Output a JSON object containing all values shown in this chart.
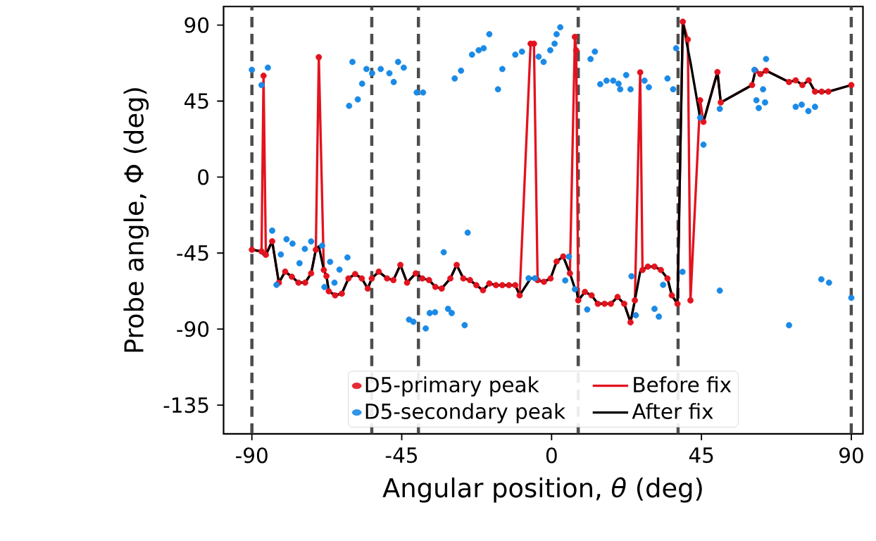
{
  "chart_data": {
    "type": "scatter",
    "xlabel": "Angular position, *θ* (deg)",
    "ylabel": "Probe angle, Φ (deg)",
    "xlim": [
      -98.5,
      93.5
    ],
    "ylim": [
      -152,
      101
    ],
    "xticks": [
      -90,
      -45,
      0,
      45,
      90
    ],
    "yticks": [
      -135,
      -90,
      -45,
      0,
      45,
      90
    ],
    "legend": "bottom",
    "ref_lines": [
      {
        "axis": "x",
        "value": -90,
        "color": "#4d4d4d",
        "line_style": "dashed"
      },
      {
        "axis": "x",
        "value": -54,
        "color": "#4d4d4d",
        "line_style": "dashed"
      },
      {
        "axis": "x",
        "value": -40,
        "color": "#4d4d4d",
        "line_style": "dashed"
      },
      {
        "axis": "x",
        "value": 8,
        "color": "#4d4d4d",
        "line_style": "dashed"
      },
      {
        "axis": "x",
        "value": 38,
        "color": "#4d4d4d",
        "line_style": "dashed"
      },
      {
        "axis": "x",
        "value": 90,
        "color": "#4d4d4d",
        "line_style": "dashed"
      }
    ],
    "series": [
      {
        "name": "D5-primary peak",
        "marker": "circle",
        "color": "#e3131e",
        "x": [
          -90,
          -87.1,
          -86.5,
          -85.8,
          -83.9,
          -81.9,
          -80,
          -78,
          -76,
          -74,
          -72.2,
          -70.8,
          -69.9,
          -68.4,
          -67.6,
          -66.9,
          -65,
          -63,
          -61,
          -59,
          -57,
          -55.2,
          -54,
          -51.9,
          -49.4,
          -47.5,
          -45.4,
          -43.4,
          -40.8,
          -38.8,
          -36.8,
          -34.9,
          -33,
          -30.4,
          -28.5,
          -26.5,
          -24.5,
          -22.6,
          -20.6,
          -18.7,
          -16.7,
          -14.8,
          -12.8,
          -10.9,
          -9.6,
          -6.3,
          -5.3,
          -4.2,
          -2.3,
          -0.3,
          1.5,
          3.5,
          5.5,
          7.0,
          7.4,
          8.0,
          10,
          12,
          13.9,
          15.9,
          17.8,
          19.8,
          21.8,
          23.7,
          25,
          26.6,
          27.3,
          28.9,
          30.9,
          32.8,
          34.8,
          36.1,
          37.8,
          39.4,
          40.9,
          41.7,
          44.6,
          45.6,
          49.8,
          50.8,
          60.2,
          61.2,
          62.7,
          64.4,
          71.3,
          73.3,
          75.3,
          77.2,
          79.1,
          81.1,
          83.1,
          90
        ],
        "values": [
          -43,
          -44,
          60,
          -46,
          -38,
          -62.5,
          -56,
          -59,
          -62.5,
          -62.5,
          -57,
          -43,
          71,
          -55,
          -58.6,
          -67.6,
          -70,
          -69,
          -60,
          -57.4,
          -60,
          -66,
          -60,
          -56,
          -60,
          -61,
          -52,
          -62.5,
          -57,
          -60,
          -61,
          -65,
          -66,
          -60,
          -52,
          -60,
          -61,
          -64,
          -67,
          -63,
          -64,
          -64,
          -64,
          -64,
          -70,
          79,
          79,
          -61,
          -62,
          -60,
          -50,
          -47,
          -57,
          83,
          75,
          -73,
          -68,
          -70,
          -75,
          -75,
          -75,
          -71,
          -75,
          -86,
          -73,
          62,
          -55,
          -53,
          -53,
          -55,
          -60,
          -70,
          -75,
          92,
          81.5,
          -73,
          45.5,
          32.7,
          62.2,
          44.2,
          54.5,
          63,
          61,
          63,
          56.3,
          57.3,
          54.5,
          57.3,
          50.6,
          50.6,
          50.6,
          54.5
        ]
      },
      {
        "name": "Before fix",
        "type": "line",
        "color": "#e3131e",
        "x": [
          -90,
          -87.1,
          -86.5,
          -85.8,
          -83.9,
          -81.9,
          -80,
          -78,
          -76,
          -74,
          -72.2,
          -70.8,
          -69.9,
          -68.4,
          -67.6,
          -66.9,
          -65,
          -63,
          -61,
          -59,
          -57,
          -55.2,
          -54,
          -51.9,
          -49.4,
          -47.5,
          -45.4,
          -43.4,
          -40.8,
          -38.8,
          -36.8,
          -34.9,
          -33,
          -30.4,
          -28.5,
          -26.5,
          -24.5,
          -22.6,
          -20.6,
          -18.7,
          -16.7,
          -14.8,
          -12.8,
          -10.9,
          -9.6,
          -6.3,
          -5.3,
          -4.2,
          -2.3,
          -0.3,
          1.5,
          3.5,
          5.5,
          7.0,
          7.4,
          8.0,
          10,
          12,
          13.9,
          15.9,
          17.8,
          19.8,
          21.8,
          23.7,
          25,
          26.6,
          27.3,
          28.9,
          30.9,
          32.8,
          34.8,
          36.1,
          37.8,
          39.4,
          40.9,
          41.7,
          44.6,
          45.6,
          49.8,
          50.8,
          60.2,
          61.2,
          62.7,
          64.4,
          71.3,
          73.3,
          75.3,
          77.2,
          79.1,
          81.1,
          83.1,
          90
        ],
        "values": [
          -43,
          -44,
          60,
          -46,
          -38,
          -62.5,
          -56,
          -59,
          -62.5,
          -62.5,
          -57,
          -43,
          71,
          -55,
          -58.6,
          -67.6,
          -70,
          -69,
          -60,
          -57.4,
          -60,
          -66,
          -60,
          -56,
          -60,
          -61,
          -52,
          -62.5,
          -57,
          -60,
          -61,
          -65,
          -66,
          -60,
          -52,
          -60,
          -61,
          -64,
          -67,
          -63,
          -64,
          -64,
          -64,
          -64,
          -70,
          79,
          79,
          -61,
          -62,
          -60,
          -50,
          -47,
          -57,
          83,
          75,
          -73,
          -68,
          -70,
          -75,
          -75,
          -75,
          -71,
          -75,
          -86,
          -73,
          62,
          -55,
          -53,
          -53,
          -55,
          -60,
          -70,
          -75,
          92,
          81.5,
          -73,
          45.5,
          32.7,
          62.2,
          44.2,
          54.5,
          63,
          61,
          63,
          56.3,
          57.3,
          54.5,
          57.3,
          50.6,
          50.6,
          50.6,
          54.5
        ]
      },
      {
        "name": "D5-secondary peak",
        "marker": "circle",
        "color": "#1a8ae6",
        "x": [
          -90.0,
          -87.1,
          -85.2,
          -83.9,
          -82.6,
          -81.3,
          -79.6,
          -77.8,
          -75.7,
          -74.1,
          -72.2,
          -68.9,
          -68.2,
          -66.5,
          -65.2,
          -63.7,
          -61.3,
          -60.8,
          -59.8,
          -58.2,
          -56.9,
          -55.6,
          -53.9,
          -51.3,
          -48.7,
          -47.4,
          -46.1,
          -44.4,
          -40.5,
          -38.6,
          -42.8,
          -41.5,
          -37.8,
          -36.6,
          -35,
          -32.4,
          -31.1,
          -30,
          -26.1,
          -25.2,
          -29.1,
          -27.2,
          -23.9,
          -21.9,
          -20.4,
          -18.7,
          -16.1,
          -14.8,
          -10.9,
          -8.9,
          -3.9,
          -2.4,
          -0.4,
          0.9,
          1.5,
          2.6,
          -6.9,
          -5,
          4.1,
          5.2,
          7.0,
          10.7,
          11.7,
          13,
          14.6,
          16.5,
          18.5,
          20.1,
          20.6,
          22.4,
          23.7,
          24,
          25.3,
          27.9,
          29.2,
          34.8,
          36.5,
          33.5,
          30.9,
          32.2,
          37.4,
          39.3,
          44.6,
          45.6,
          50.5,
          50.5,
          60.9,
          63.5,
          64.4,
          61.5,
          62.2,
          64.1,
          71.3,
          73.3,
          75.1,
          77.1,
          79.1,
          81,
          83.3,
          90
        ],
        "values": [
          63.5,
          54.5,
          64.8,
          -31.7,
          -63.8,
          -45.8,
          -36.8,
          -39.4,
          -51,
          -42.5,
          -38.1,
          -40.6,
          -65.1,
          -50.2,
          -62.5,
          -54.8,
          -47.6,
          42.2,
          68.2,
          46,
          55.3,
          64,
          61.5,
          64,
          61.5,
          56.3,
          68.2,
          64.8,
          50.1,
          50.1,
          -84.4,
          -85.7,
          -89.6,
          -80.5,
          -80,
          -44.5,
          -78,
          -80.5,
          -87.7,
          -32.9,
          58.4,
          63,
          72.5,
          75.1,
          76.3,
          84.6,
          52,
          64,
          72.5,
          74.3,
          71.3,
          68.2,
          75.1,
          79,
          84.6,
          88.7,
          -59.9,
          -59.9,
          -61.2,
          -47.1,
          -66.4,
          -78.4,
          69.9,
          74.3,
          55,
          57.1,
          57.1,
          55.3,
          52,
          60.4,
          52,
          -58.7,
          -81.8,
          57.1,
          53.2,
          58.4,
          52,
          -63.8,
          -78,
          -82.6,
          76.3,
          -56.1,
          35.2,
          19.2,
          40.4,
          -67.2,
          63.5,
          52,
          69.9,
          45.5,
          40.9,
          44.2,
          -87.7,
          41.6,
          42.9,
          39.1,
          41.6,
          -60.5,
          -62.5,
          -71.5
        ]
      },
      {
        "name": "After fix",
        "type": "line",
        "color": "#000000",
        "x": [
          -90,
          -87.1,
          -86.5,
          -85.8,
          -83.9,
          -81.9,
          -80,
          -78,
          -76,
          -74,
          -72.2,
          -70.8,
          -69.9,
          -68.4,
          -67.6,
          -66.9,
          -65,
          -63,
          -61,
          -59,
          -57,
          -55.2,
          -54,
          -51.9,
          -49.4,
          -47.5,
          -45.4,
          -43.4,
          -40.8,
          -38.8,
          -36.8,
          -34.9,
          -33,
          -30.4,
          -28.5,
          -26.5,
          -24.5,
          -22.6,
          -20.6,
          -18.7,
          -16.7,
          -14.8,
          -12.8,
          -10.9,
          -9.6,
          -6.3,
          -5.3,
          -4.2,
          -2.3,
          -0.3,
          1.5,
          3.5,
          5.5,
          7.0,
          7.4,
          8.0,
          10,
          12,
          13.9,
          15.9,
          17.8,
          19.8,
          21.8,
          23.7,
          25,
          26.6,
          27.3,
          28.9,
          30.9,
          32.8,
          34.8,
          36.1,
          37.8,
          39.4,
          40.9,
          41.7,
          44.6,
          45.6,
          49.8,
          50.8,
          60.2,
          61.2,
          62.7,
          64.4,
          71.3,
          73.3,
          75.3,
          77.2,
          79.1,
          81.1,
          83.1,
          90
        ],
        "values": [
          -43,
          -44,
          -46,
          -46,
          -38,
          -62.5,
          -56,
          -59,
          -62.5,
          -62.5,
          -57,
          -43,
          -41,
          -55,
          -58.6,
          -67.6,
          -70,
          -69,
          -60,
          -57.4,
          -60,
          -66,
          -60,
          -56,
          -60,
          -61,
          -52,
          -62.5,
          -57,
          -60,
          -61,
          -65,
          -66,
          -60,
          -52,
          -60,
          -61,
          -64,
          -67,
          -63,
          -64,
          -64,
          -64,
          -64,
          -70,
          -60,
          -60,
          -61,
          -62,
          -60,
          -50,
          -47,
          -57,
          -66,
          -66,
          -73,
          -68,
          -70,
          -75,
          -75,
          -75,
          -71,
          -75,
          -86,
          -73,
          -56,
          -55,
          -53,
          -53,
          -55,
          -60,
          -70,
          -75,
          92,
          76,
          68,
          35,
          32.7,
          62.2,
          44.2,
          54.5,
          63,
          61,
          63,
          56.3,
          57.3,
          54.5,
          57.3,
          50.6,
          50.6,
          50.6,
          54.5
        ]
      }
    ]
  }
}
